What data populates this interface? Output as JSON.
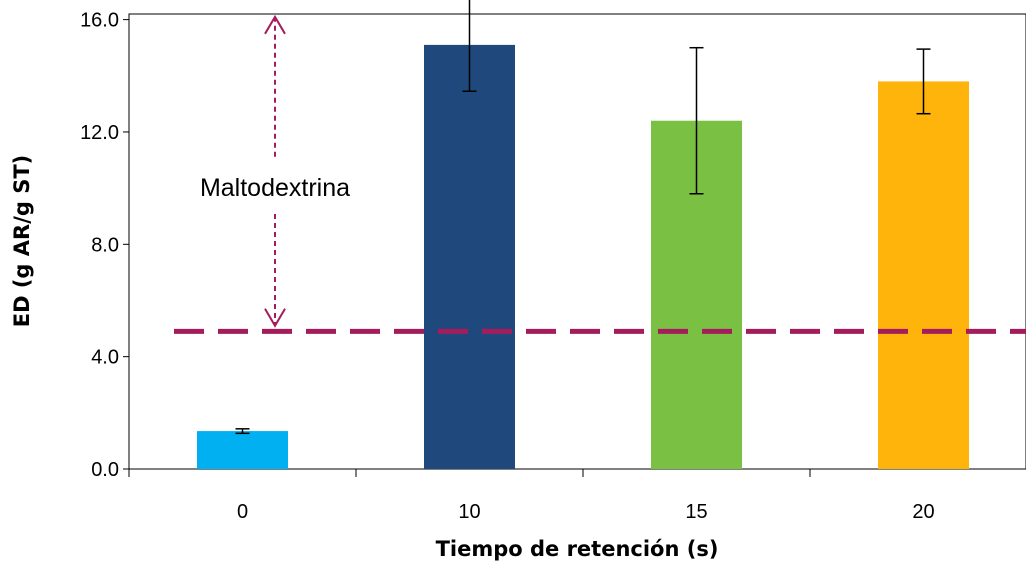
{
  "chart_data": {
    "type": "bar",
    "title": "",
    "xlabel": "Tiempo de retención (s)",
    "ylabel": "ED (g AR/g ST)",
    "categories": [
      "0",
      "10",
      "15",
      "20"
    ],
    "values": [
      1.35,
      15.1,
      12.4,
      13.8
    ],
    "error": [
      0.08,
      1.65,
      2.6,
      1.15
    ],
    "colors": [
      "#00b0f0",
      "#1f497d",
      "#7ac143",
      "#ffb40b"
    ],
    "ylim": [
      0,
      16.2
    ],
    "yticks": [
      "0.0",
      "4.0",
      "8.0",
      "12.0",
      "16.0"
    ],
    "ytick_values": [
      0,
      4,
      8,
      12,
      16
    ],
    "reference_line": {
      "value": 4.9,
      "color": "#a51c5c",
      "style": "dashed"
    },
    "annotation": {
      "text": "Maltodextrina",
      "arrow_from": 16.1,
      "arrow_to": 5.1,
      "color": "#a51c5c"
    },
    "grid": false,
    "legend": "none"
  }
}
